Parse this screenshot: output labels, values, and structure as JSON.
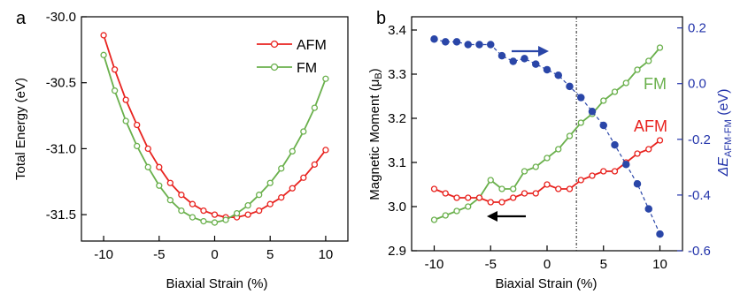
{
  "chart_data": [
    {
      "panel": "a",
      "type": "line",
      "xlabel": "Biaxial Strain (%)",
      "ylabel": "Total Energy (eV)",
      "xlim": [
        -12,
        12
      ],
      "ylim": [
        -31.7,
        -30.0
      ],
      "xticks": [
        -10,
        -5,
        0,
        5,
        10
      ],
      "yticks": [
        -30.0,
        -30.5,
        -31.0,
        -31.5
      ],
      "ytick_labels": [
        "-30.0",
        "-30.5",
        "-31.0",
        "-31.5"
      ],
      "legend_position": "top-right",
      "series": [
        {
          "name": "AFM",
          "color": "#e8231f",
          "marker": "open-circle",
          "x": [
            -10,
            -9,
            -8,
            -7,
            -6,
            -5,
            -4,
            -3,
            -2,
            -1,
            0,
            1,
            2,
            3,
            4,
            5,
            6,
            7,
            8,
            9,
            10
          ],
          "y": [
            -30.14,
            -30.4,
            -30.63,
            -30.82,
            -31.0,
            -31.14,
            -31.26,
            -31.35,
            -31.42,
            -31.47,
            -31.5,
            -31.52,
            -31.52,
            -31.5,
            -31.47,
            -31.42,
            -31.37,
            -31.3,
            -31.22,
            -31.12,
            -31.01
          ]
        },
        {
          "name": "FM",
          "color": "#6ab04c",
          "marker": "open-circle",
          "x": [
            -10,
            -9,
            -8,
            -7,
            -6,
            -5,
            -4,
            -3,
            -2,
            -1,
            0,
            1,
            2,
            3,
            4,
            5,
            6,
            7,
            8,
            9,
            10
          ],
          "y": [
            -30.29,
            -30.56,
            -30.79,
            -30.98,
            -31.14,
            -31.28,
            -31.39,
            -31.47,
            -31.52,
            -31.55,
            -31.56,
            -31.54,
            -31.49,
            -31.43,
            -31.35,
            -31.26,
            -31.15,
            -31.02,
            -30.87,
            -30.69,
            -30.47
          ]
        }
      ]
    },
    {
      "panel": "b",
      "type": "line",
      "xlabel": "Biaxial Strain (%)",
      "ylabel": "Magnetic Moment (μB)",
      "ylabel_right": "ΔE AFM-FM (eV)",
      "xlim": [
        -12,
        12
      ],
      "ylim": [
        2.9,
        3.43
      ],
      "ylim_right": [
        -0.6,
        0.24
      ],
      "xticks": [
        -10,
        -5,
        0,
        5,
        10
      ],
      "yticks": [
        2.9,
        3.0,
        3.1,
        3.2,
        3.3,
        3.4
      ],
      "ytick_labels": [
        "2.9",
        "3.0",
        "3.1",
        "3.2",
        "3.3",
        "3.4"
      ],
      "yticks_right": [
        -0.6,
        -0.4,
        -0.2,
        0.0,
        0.2
      ],
      "ytick_labels_right": [
        "-0.6",
        "-0.4",
        "-0.2",
        "0.0",
        "0.2"
      ],
      "vline_x": 2.6,
      "labels": {
        "fm": "FM",
        "afm": "AFM"
      },
      "series": [
        {
          "name": "FM",
          "axis": "left",
          "color": "#6ab04c",
          "marker": "open-circle",
          "x": [
            -10,
            -9,
            -8,
            -7,
            -6,
            -5,
            -4,
            -3,
            -2,
            -1,
            0,
            1,
            2,
            3,
            4,
            5,
            6,
            7,
            8,
            9,
            10
          ],
          "y": [
            2.97,
            2.98,
            2.99,
            3.0,
            3.02,
            3.06,
            3.04,
            3.04,
            3.08,
            3.09,
            3.11,
            3.13,
            3.16,
            3.19,
            3.21,
            3.24,
            3.26,
            3.28,
            3.31,
            3.33,
            3.36
          ]
        },
        {
          "name": "AFM",
          "axis": "left",
          "color": "#e8231f",
          "marker": "open-circle",
          "x": [
            -10,
            -9,
            -8,
            -7,
            -6,
            -5,
            -4,
            -3,
            -2,
            -1,
            0,
            1,
            2,
            3,
            4,
            5,
            6,
            7,
            8,
            9,
            10
          ],
          "y": [
            3.04,
            3.03,
            3.02,
            3.02,
            3.02,
            3.01,
            3.01,
            3.02,
            3.03,
            3.03,
            3.05,
            3.04,
            3.04,
            3.06,
            3.07,
            3.08,
            3.08,
            3.1,
            3.12,
            3.13,
            3.15
          ]
        },
        {
          "name": "ΔE AFM-FM",
          "axis": "right",
          "color": "#2a46a8",
          "marker": "filled-circle",
          "x": [
            -10,
            -9,
            -8,
            -7,
            -6,
            -5,
            -4,
            -3,
            -2,
            -1,
            0,
            1,
            2,
            3,
            4,
            5,
            6,
            7,
            8,
            9,
            10
          ],
          "y": [
            0.16,
            0.15,
            0.15,
            0.14,
            0.14,
            0.14,
            0.1,
            0.08,
            0.09,
            0.07,
            0.05,
            0.03,
            -0.01,
            -0.05,
            -0.1,
            -0.15,
            -0.22,
            -0.29,
            -0.36,
            -0.45,
            -0.54
          ]
        }
      ]
    }
  ]
}
